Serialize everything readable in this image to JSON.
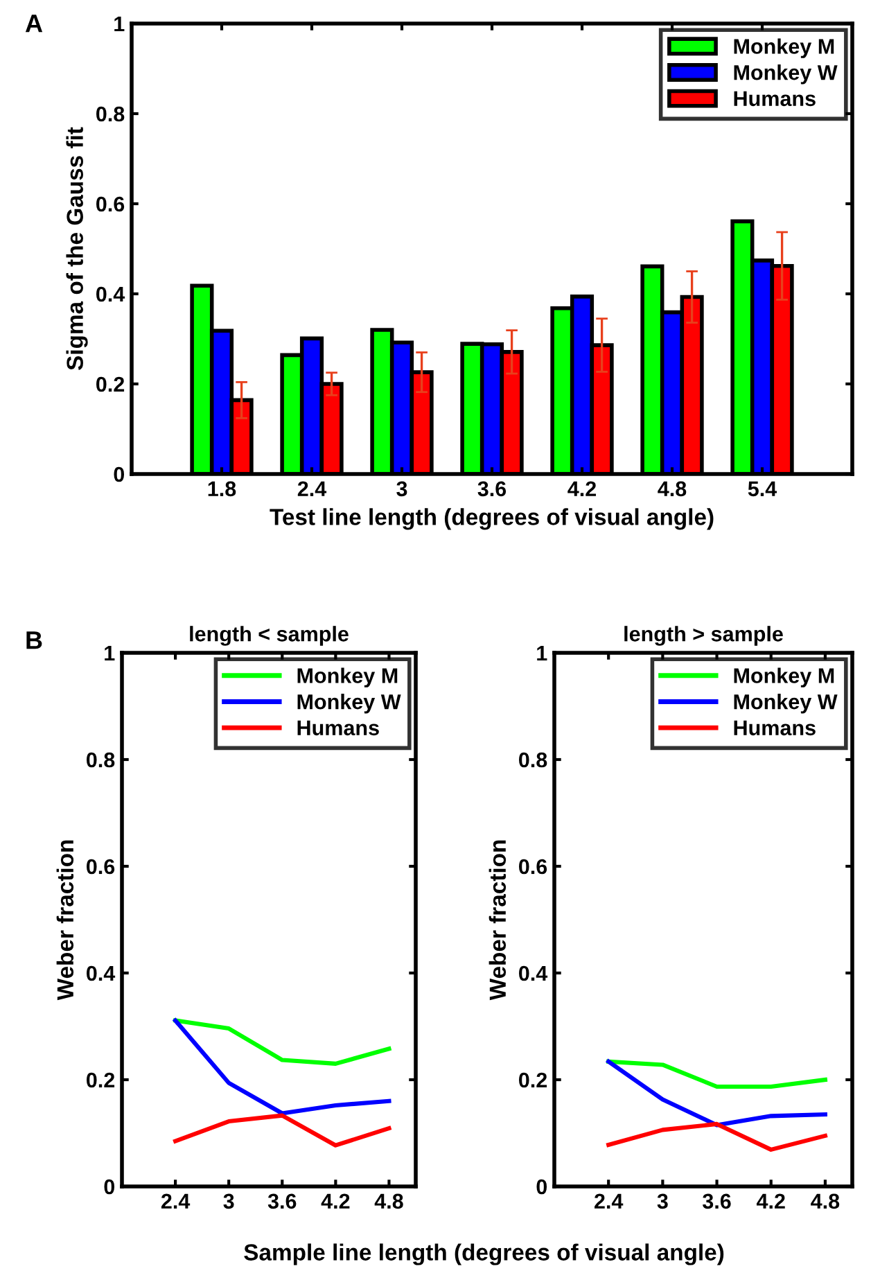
{
  "chart_data": [
    {
      "type": "bar",
      "annotations": [
        "A"
      ],
      "ylabel": "Sigma of the Gauss fit",
      "xlabel": "Test line length (degrees of visual angle)",
      "categories": [
        "1.8",
        "2.4",
        "3",
        "3.6",
        "4.2",
        "4.8",
        "5.4"
      ],
      "ylim": [
        0,
        1
      ],
      "yticks": [
        0,
        0.2,
        0.4,
        0.6,
        0.8,
        1
      ],
      "legend": "top right",
      "grid": false,
      "series": [
        {
          "name": "Monkey M",
          "color": "#00ff00",
          "values": [
            0.418,
            0.264,
            0.32,
            0.289,
            0.368,
            0.461,
            0.561
          ]
        },
        {
          "name": "Monkey W",
          "color": "#0000ff",
          "values": [
            0.318,
            0.301,
            0.292,
            0.288,
            0.394,
            0.359,
            0.474
          ]
        },
        {
          "name": "Humans",
          "color": "#ff0000",
          "values": [
            0.164,
            0.2,
            0.226,
            0.271,
            0.286,
            0.393,
            0.462
          ],
          "errors": [
            0.04,
            0.025,
            0.044,
            0.048,
            0.059,
            0.057,
            0.075
          ]
        }
      ]
    },
    {
      "type": "line",
      "annotations": [
        "B"
      ],
      "title": "length < sample",
      "ylabel": "Weber fraction",
      "xlabel": "Sample line length (degrees of visual angle)",
      "x": [
        2.4,
        3,
        3.6,
        4.2,
        4.8
      ],
      "xlim": [
        1.8,
        5.1
      ],
      "xticks": [
        2.4,
        3,
        3.6,
        4.2,
        4.8
      ],
      "ylim": [
        0,
        1
      ],
      "yticks": [
        0,
        0.2,
        0.4,
        0.6,
        0.8,
        1
      ],
      "legend": "top right",
      "grid": false,
      "series": [
        {
          "name": "Monkey M",
          "color": "#00ff00",
          "values": [
            0.311,
            0.296,
            0.237,
            0.23,
            0.258
          ]
        },
        {
          "name": "Monkey W",
          "color": "#0000ff",
          "values": [
            0.311,
            0.194,
            0.137,
            0.152,
            0.16
          ]
        },
        {
          "name": "Humans",
          "color": "#ff0000",
          "values": [
            0.085,
            0.122,
            0.133,
            0.077,
            0.109
          ]
        }
      ]
    },
    {
      "type": "line",
      "title": "length > sample",
      "ylabel": "Weber fraction",
      "x": [
        2.4,
        3,
        3.6,
        4.2,
        4.8
      ],
      "xlim": [
        1.8,
        5.1
      ],
      "xticks": [
        2.4,
        3,
        3.6,
        4.2,
        4.8
      ],
      "ylim": [
        0,
        1
      ],
      "yticks": [
        0,
        0.2,
        0.4,
        0.6,
        0.8,
        1
      ],
      "legend": "top right",
      "grid": false,
      "series": [
        {
          "name": "Monkey M",
          "color": "#00ff00",
          "values": [
            0.234,
            0.228,
            0.187,
            0.187,
            0.2
          ]
        },
        {
          "name": "Monkey W",
          "color": "#0000ff",
          "values": [
            0.234,
            0.163,
            0.115,
            0.132,
            0.135
          ]
        },
        {
          "name": "Humans",
          "color": "#ff0000",
          "values": [
            0.078,
            0.106,
            0.117,
            0.069,
            0.095
          ]
        }
      ]
    }
  ]
}
